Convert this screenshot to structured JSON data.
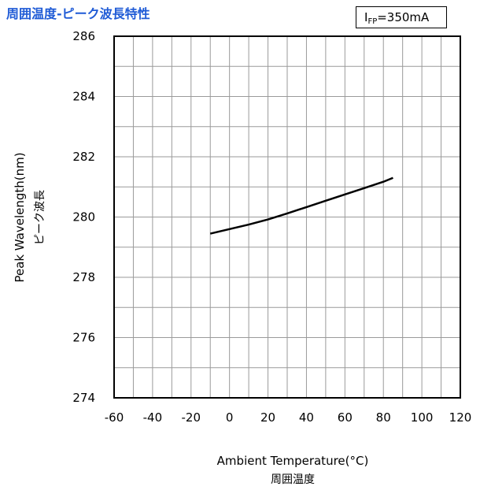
{
  "chart_data": {
    "type": "line",
    "title": "周囲温度-ピーク波長特性",
    "condition": {
      "symbol": "I",
      "subscript": "FP",
      "value": "=350mA"
    },
    "xlabel": "Ambient Temperature(°C)",
    "xlabel_jp": "周囲温度",
    "ylabel": "Peak Wavelength(nm)",
    "ylabel_jp": "ピーク波長",
    "xlim": [
      -60,
      120
    ],
    "ylim": [
      274,
      286
    ],
    "x_ticks": [
      "-60",
      "-40",
      "-20",
      "0",
      "20",
      "40",
      "60",
      "80",
      "100",
      "120"
    ],
    "y_ticks": [
      "274",
      "276",
      "278",
      "280",
      "282",
      "284",
      "286"
    ],
    "grid": true,
    "series": [
      {
        "x": [
          -10,
          0,
          10,
          20,
          30,
          40,
          50,
          60,
          70,
          80,
          85
        ],
        "y": [
          279.45,
          279.6,
          279.75,
          279.92,
          280.12,
          280.33,
          280.54,
          280.75,
          280.96,
          281.17,
          281.3
        ]
      }
    ]
  }
}
